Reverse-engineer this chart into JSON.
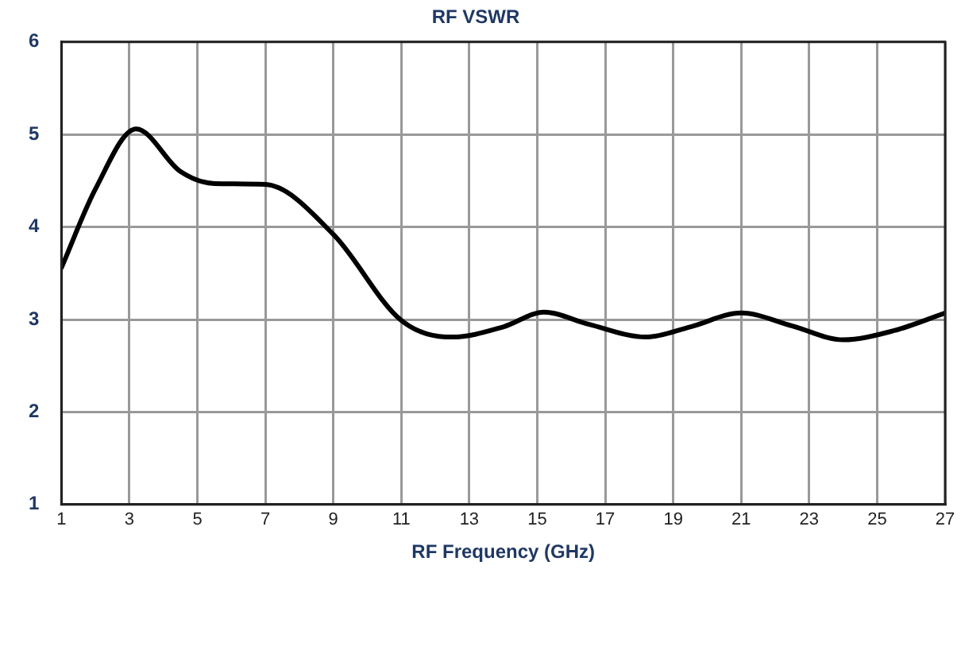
{
  "chart_data": {
    "type": "line",
    "title": "RF VSWR",
    "xlabel": "RF Frequency (GHz)",
    "x": [
      1,
      2,
      3.2,
      4.5,
      5.5,
      7,
      9,
      11,
      12.5,
      14,
      15.2,
      16.5,
      18.2,
      19.5,
      21,
      22.5,
      24,
      25.5,
      27
    ],
    "series": [
      {
        "color": "#000000",
        "values": [
          3.56,
          4.41,
          5.06,
          4.6,
          4.47,
          4.46,
          3.92,
          2.99,
          2.81,
          2.92,
          3.08,
          2.95,
          2.81,
          2.92,
          3.07,
          2.93,
          2.78,
          2.88,
          3.07
        ]
      }
    ],
    "xlim": [
      1,
      27
    ],
    "xticks": [
      1,
      3,
      5,
      7,
      9,
      11,
      13,
      15,
      17,
      19,
      21,
      23,
      25,
      27
    ],
    "ylim": [
      1,
      6
    ],
    "yticks": [
      1,
      2,
      3,
      4,
      5,
      6
    ],
    "grid": true,
    "legend": false,
    "marker": "none",
    "line_style": "solid"
  }
}
